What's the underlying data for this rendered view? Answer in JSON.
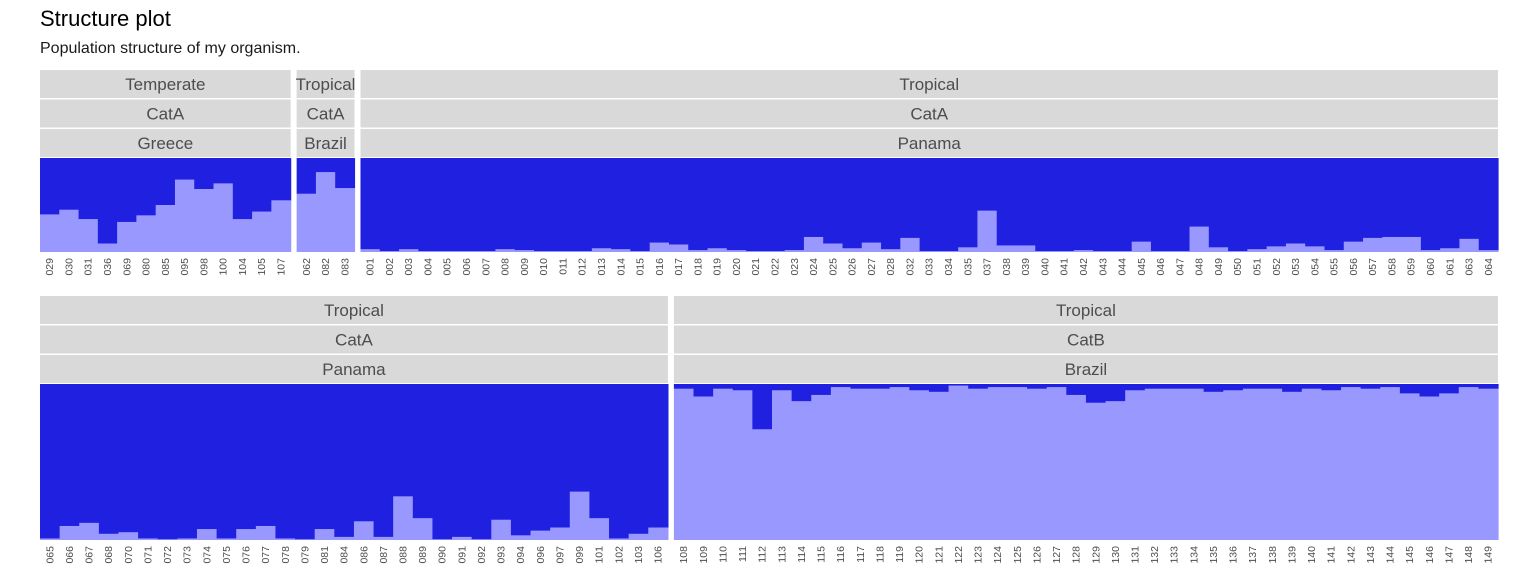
{
  "title": "Structure plot",
  "subtitle": "Population structure of my organism.",
  "colors": {
    "cluster_1": "#2020e0",
    "cluster_2": "#9898ff",
    "strip_bg": "#d9d9d9",
    "strip_text": "#4d4d4d",
    "tick_text": "#4d4d4d"
  },
  "chart_data": {
    "type": "bar",
    "stacked": true,
    "ylim": [
      0,
      1
    ],
    "grid": false,
    "legend": "none",
    "series_order": [
      "cluster_1",
      "cluster_2"
    ],
    "facets": [
      {
        "row": 1,
        "strips": [
          "Temperate",
          "CatA",
          "Greece"
        ],
        "categories": [
          "029",
          "030",
          "031",
          "036",
          "069",
          "080",
          "085",
          "095",
          "098",
          "100",
          "104",
          "105",
          "107"
        ],
        "cluster_2": [
          0.4,
          0.45,
          0.35,
          0.09,
          0.32,
          0.39,
          0.5,
          0.77,
          0.67,
          0.73,
          0.35,
          0.43,
          0.55
        ]
      },
      {
        "row": 1,
        "strips": [
          "Tropical",
          "CatA",
          "Brazil"
        ],
        "categories": [
          "062",
          "082",
          "083"
        ],
        "cluster_2": [
          0.62,
          0.85,
          0.68
        ]
      },
      {
        "row": 1,
        "strips": [
          "Tropical",
          "CatA",
          "Panama"
        ],
        "categories": [
          "001",
          "002",
          "003",
          "004",
          "005",
          "006",
          "007",
          "008",
          "009",
          "010",
          "011",
          "012",
          "013",
          "014",
          "015",
          "016",
          "017",
          "018",
          "019",
          "020",
          "021",
          "022",
          "023",
          "024",
          "025",
          "026",
          "027",
          "028",
          "032",
          "033",
          "034",
          "035",
          "037",
          "038",
          "039",
          "040",
          "041",
          "042",
          "043",
          "044",
          "045",
          "046",
          "047",
          "048",
          "049",
          "050",
          "051",
          "052",
          "053",
          "054",
          "055",
          "056",
          "057",
          "058",
          "059",
          "060",
          "061",
          "063",
          "064"
        ],
        "cluster_2": [
          0.03,
          0.01,
          0.03,
          0.01,
          0.01,
          0.01,
          0.01,
          0.03,
          0.02,
          0.01,
          0.01,
          0.01,
          0.04,
          0.03,
          0.01,
          0.1,
          0.08,
          0.02,
          0.04,
          0.02,
          0.01,
          0.01,
          0.02,
          0.16,
          0.09,
          0.04,
          0.1,
          0.03,
          0.15,
          0.01,
          0.01,
          0.05,
          0.44,
          0.07,
          0.07,
          0.01,
          0.01,
          0.02,
          0.01,
          0.01,
          0.11,
          0.01,
          0.01,
          0.27,
          0.05,
          0.01,
          0.03,
          0.06,
          0.09,
          0.06,
          0.02,
          0.11,
          0.15,
          0.16,
          0.16,
          0.02,
          0.04,
          0.14,
          0.02
        ]
      },
      {
        "row": 2,
        "strips": [
          "Tropical",
          "CatA",
          "Panama"
        ],
        "categories": [
          "065",
          "066",
          "067",
          "068",
          "070",
          "071",
          "072",
          "073",
          "074",
          "075",
          "076",
          "077",
          "078",
          "079",
          "081",
          "084",
          "086",
          "087",
          "088",
          "089",
          "090",
          "091",
          "092",
          "093",
          "094",
          "096",
          "097",
          "099",
          "101",
          "102",
          "103",
          "106"
        ],
        "cluster_2": [
          0.01,
          0.09,
          0.11,
          0.04,
          0.05,
          0.01,
          0.005,
          0.01,
          0.07,
          0.01,
          0.07,
          0.09,
          0.01,
          0.005,
          0.07,
          0.02,
          0.12,
          0.02,
          0.28,
          0.14,
          0.005,
          0.02,
          0.005,
          0.13,
          0.03,
          0.06,
          0.08,
          0.31,
          0.14,
          0.01,
          0.04,
          0.08
        ]
      },
      {
        "row": 2,
        "strips": [
          "Tropical",
          "CatB",
          "Brazil"
        ],
        "categories": [
          "108",
          "109",
          "110",
          "111",
          "112",
          "113",
          "114",
          "115",
          "116",
          "117",
          "118",
          "119",
          "120",
          "121",
          "122",
          "123",
          "124",
          "125",
          "126",
          "127",
          "128",
          "129",
          "130",
          "131",
          "132",
          "133",
          "134",
          "135",
          "136",
          "137",
          "138",
          "139",
          "140",
          "141",
          "142",
          "143",
          "144",
          "145",
          "146",
          "147",
          "148",
          "149"
        ],
        "cluster_2": [
          0.97,
          0.92,
          0.97,
          0.96,
          0.71,
          0.96,
          0.89,
          0.93,
          0.98,
          0.97,
          0.97,
          0.98,
          0.96,
          0.95,
          0.99,
          0.97,
          0.98,
          0.98,
          0.97,
          0.98,
          0.93,
          0.88,
          0.89,
          0.96,
          0.97,
          0.97,
          0.97,
          0.95,
          0.96,
          0.97,
          0.97,
          0.95,
          0.97,
          0.96,
          0.98,
          0.97,
          0.98,
          0.94,
          0.92,
          0.94,
          0.98,
          0.97
        ]
      }
    ]
  }
}
